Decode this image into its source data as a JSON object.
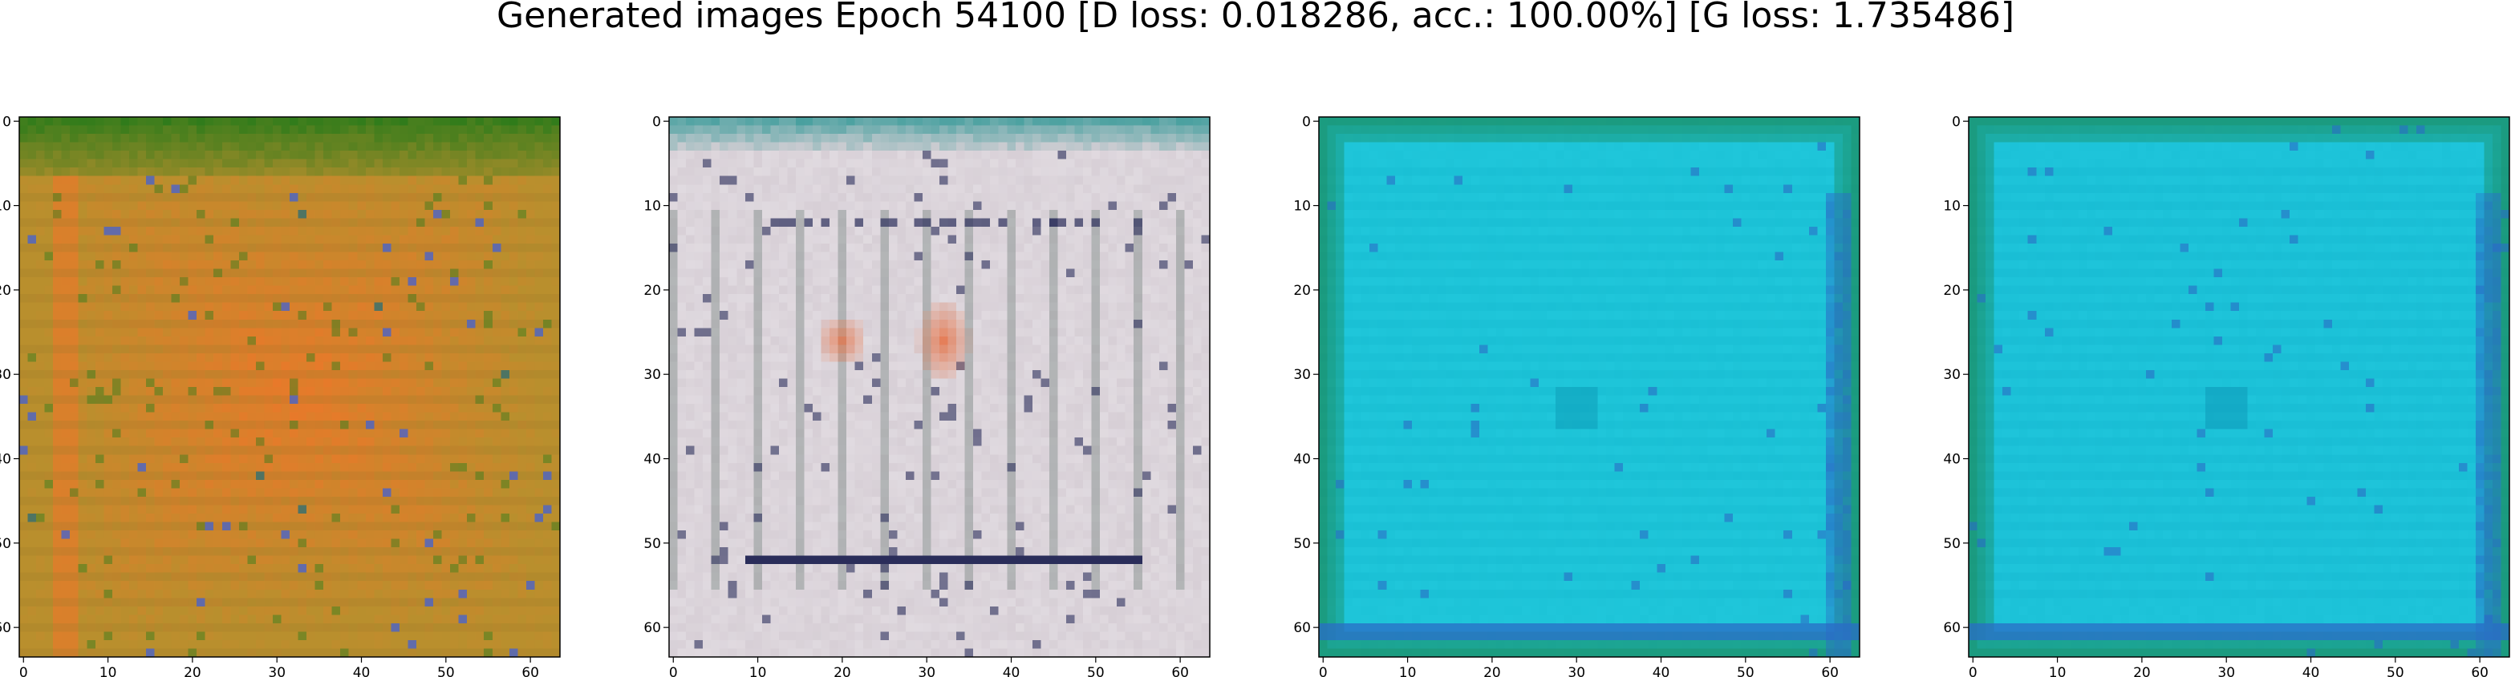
{
  "title": "Generated images Epoch 54100 [D loss: 0.018286, acc.: 100.00%] [G loss: 1.735486]",
  "chart_data": [
    {
      "type": "heatmap",
      "xlim": [
        0,
        63
      ],
      "ylim": [
        63,
        0
      ],
      "xticks": [
        0,
        10,
        20,
        30,
        40,
        50,
        60
      ],
      "yticks": [
        0,
        10,
        20,
        30,
        40,
        50,
        60
      ],
      "palette": [
        "#b78d2a",
        "#d68a2a",
        "#e67a2a",
        "#3b7d1c",
        "#4a63c9",
        "#9c7a2a",
        "#c9a032"
      ],
      "dominant_color": "#b98f2d"
    },
    {
      "type": "heatmap",
      "xlim": [
        0,
        63
      ],
      "ylim": [
        63,
        0
      ],
      "xticks": [
        0,
        10,
        20,
        30,
        40,
        50,
        60
      ],
      "yticks": [
        0,
        10,
        20,
        30,
        40,
        50,
        60
      ],
      "palette": [
        "#d8d0d6",
        "#cfc6cf",
        "#e6e1e6",
        "#7d8a86",
        "#2a2d5a",
        "#e86b3a",
        "#5aa6a6"
      ],
      "dominant_color": "#d7cfd6"
    },
    {
      "type": "heatmap",
      "xlim": [
        0,
        63
      ],
      "ylim": [
        63,
        0
      ],
      "xticks": [
        0,
        10,
        20,
        30,
        40,
        50,
        60
      ],
      "yticks": [
        0,
        10,
        20,
        30,
        40,
        50,
        60
      ],
      "palette": [
        "#1cc6d9",
        "#22c8dc",
        "#14b9cf",
        "#0c9ab6",
        "#2a6cc6",
        "#1a8a5a"
      ],
      "dominant_color": "#1dc4d8"
    },
    {
      "type": "heatmap",
      "xlim": [
        0,
        63
      ],
      "ylim": [
        63,
        0
      ],
      "xticks": [
        0,
        10,
        20,
        30,
        40,
        50,
        60
      ],
      "yticks": [
        0,
        10,
        20,
        30,
        40,
        50,
        60
      ],
      "palette": [
        "#1cc4da",
        "#20c6dc",
        "#14b6cf",
        "#0c96b6",
        "#2a6cc6",
        "#1a8a5a"
      ],
      "dominant_color": "#1cc2d8"
    }
  ]
}
